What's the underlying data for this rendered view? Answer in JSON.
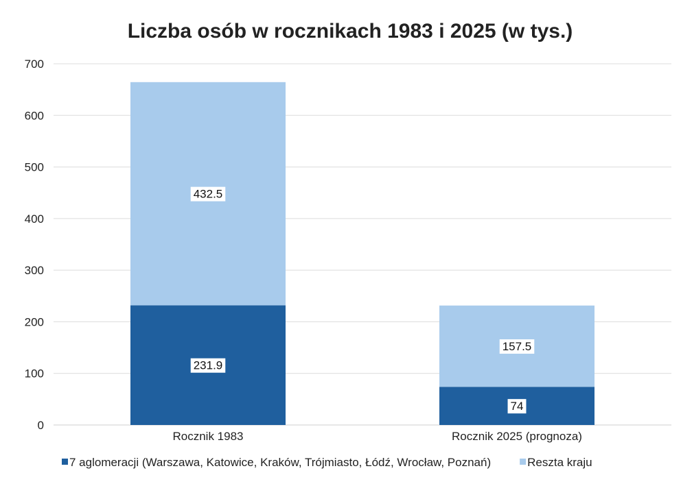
{
  "chart_data": {
    "type": "bar",
    "stacked": true,
    "title": "Liczba osób w rocznikach 1983 i 2025 (w tys.)",
    "xlabel": "",
    "ylabel": "",
    "categories": [
      "Rocznik 1983",
      "Rocznik 2025 (prognoza)"
    ],
    "series": [
      {
        "name": "7 aglomeracji (Warszawa, Katowice, Kraków, Trójmiasto, Łódź, Wrocław, Poznań)",
        "color": "#1f5f9e",
        "values": [
          231.9,
          74
        ],
        "labels": [
          "231.9",
          "74"
        ]
      },
      {
        "name": "Reszta kraju",
        "color": "#a8cbec",
        "values": [
          432.5,
          157.5
        ],
        "labels": [
          "432.5",
          "157.5"
        ]
      }
    ],
    "ylim": [
      0,
      700
    ],
    "yticks": [
      0,
      100,
      200,
      300,
      400,
      500,
      600,
      700
    ],
    "grid": true,
    "legend_position": "bottom"
  }
}
